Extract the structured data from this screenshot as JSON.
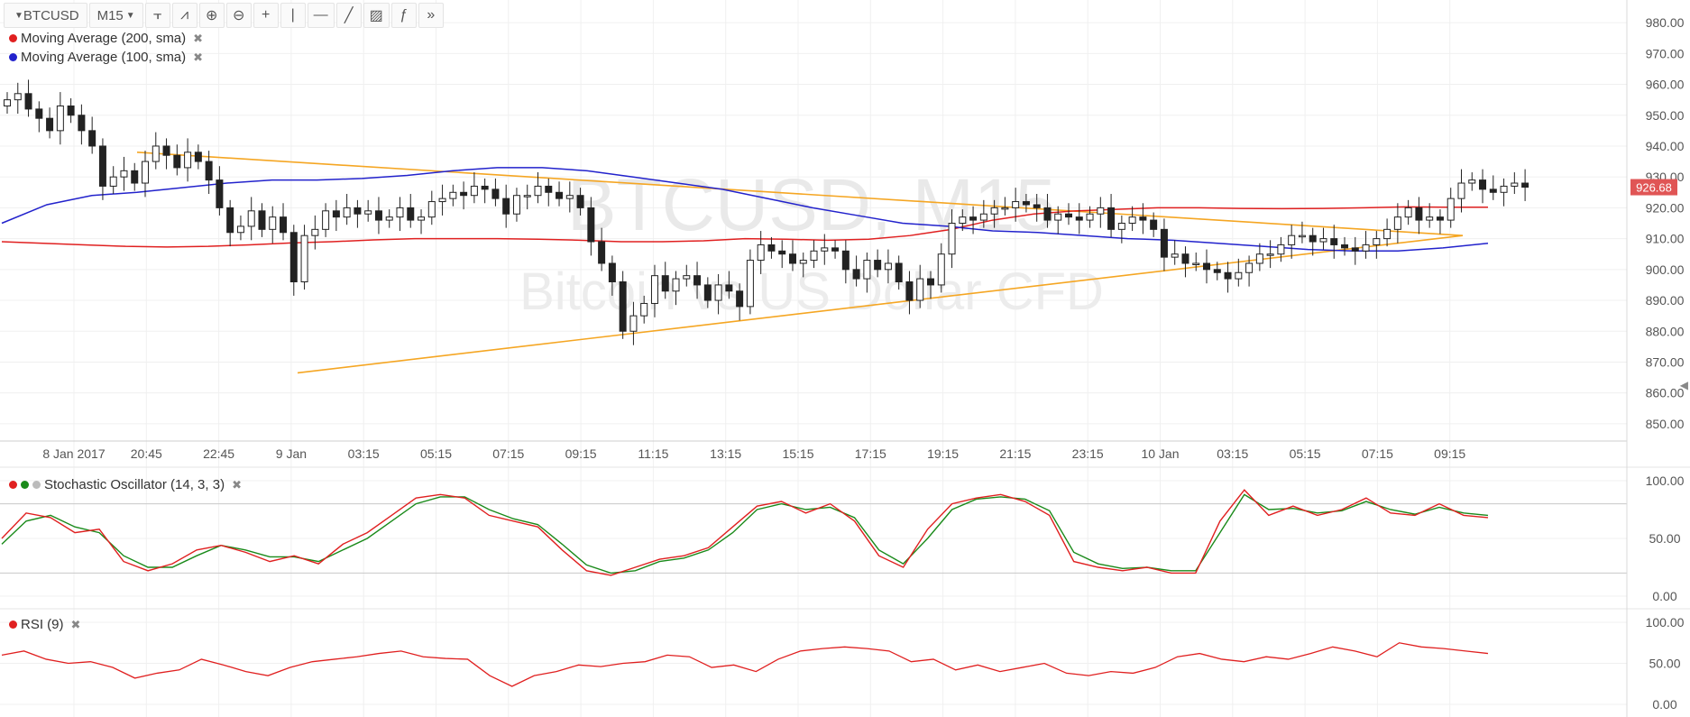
{
  "toolbar": {
    "symbol": "BTCUSD",
    "interval": "M15",
    "icons": [
      "bar-style-icon",
      "indicators-icon",
      "zoom-in-icon",
      "zoom-out-icon",
      "crosshair-icon",
      "vertical-line-icon",
      "horizontal-line-icon",
      "trend-line-icon",
      "fibonacci-icon",
      "function-icon",
      "more-icon"
    ]
  },
  "legends": {
    "ma200": "Moving Average (200, sma)",
    "ma100": "Moving Average (100, sma)",
    "stoch": "Stochastic Oscillator (14, 3, 3)",
    "rsi": "RSI (9)"
  },
  "watermark": {
    "line1": "BTCUSD, M15",
    "line2": "Bitcoin vs US Dollar CFD"
  },
  "colors": {
    "ma200": "#e02020",
    "ma100": "#2222cc",
    "stoch_k": "#e02020",
    "stoch_d": "#1a8a1a",
    "rsi": "#e02020",
    "trendline": "#f5a623",
    "price_badge": "#e05555",
    "grid": "#f0f0f0"
  },
  "chart_data": [
    {
      "type": "candlestick",
      "title": "BTCUSD, M15",
      "ylim": [
        845,
        985
      ],
      "y_ticks": [
        "980.00",
        "970.00",
        "960.00",
        "950.00",
        "940.00",
        "930.00",
        "920.00",
        "910.00",
        "900.00",
        "890.00",
        "880.00",
        "870.00",
        "860.00",
        "850.00"
      ],
      "x_ticks": [
        "8 Jan 2017",
        "20:45",
        "22:45",
        "9 Jan",
        "03:15",
        "05:15",
        "07:15",
        "09:15",
        "11:15",
        "13:15",
        "15:15",
        "17:15",
        "19:15",
        "21:15",
        "23:15",
        "10 Jan",
        "03:15",
        "05:15",
        "07:15",
        "09:15"
      ],
      "current_price": "926.68",
      "close": [
        955,
        957,
        952,
        949,
        945,
        953,
        950,
        945,
        940,
        927,
        930,
        932,
        928,
        935,
        940,
        937,
        933,
        938,
        935,
        929,
        920,
        912,
        914,
        919,
        913,
        917,
        912,
        896,
        911,
        913,
        919,
        917,
        920,
        918,
        919,
        916,
        917,
        920,
        916,
        917,
        922,
        923,
        925,
        924,
        927,
        926,
        923,
        918,
        924,
        924,
        927,
        925,
        923,
        924,
        920,
        909,
        902,
        896,
        880,
        885,
        889,
        898,
        893,
        897,
        898,
        895,
        890,
        895,
        893,
        888,
        903,
        908,
        906,
        905,
        902,
        903,
        906,
        907,
        906,
        900,
        897,
        903,
        900,
        902,
        896,
        890,
        897,
        895,
        905,
        915,
        917,
        916,
        918,
        920,
        920,
        922,
        921,
        920,
        916,
        918,
        917,
        916,
        918,
        920,
        913,
        915,
        917,
        916,
        913,
        904,
        905,
        902,
        902,
        900,
        899,
        897,
        899,
        902,
        905,
        905,
        908,
        911,
        911,
        909,
        910,
        908,
        907,
        906,
        908,
        910,
        913,
        917,
        920,
        916,
        917,
        916,
        923,
        928,
        929,
        926,
        925,
        927,
        928,
        926.68
      ],
      "series": [
        {
          "name": "Moving Average (200, sma)",
          "values": [
            909,
            908.5,
            908,
            907.5,
            907.3,
            907.5,
            908,
            908.6,
            909,
            909.6,
            910,
            910,
            910,
            909.8,
            909.5,
            909,
            909,
            909.3,
            910,
            909.8,
            909.5,
            909.8,
            911,
            913,
            916,
            918,
            919,
            919.5,
            920,
            920,
            919.8,
            919.7,
            919.8,
            920,
            920.3,
            920.2,
            920.2
          ]
        },
        {
          "name": "Moving Average (100, sma)",
          "values": [
            915,
            921,
            924,
            925,
            926.5,
            928,
            929,
            929,
            929.5,
            930.5,
            932,
            933,
            933,
            932,
            930,
            928,
            926,
            923,
            920,
            917.5,
            915,
            914,
            912.5,
            912,
            911,
            910,
            909.5,
            908.5,
            907.5,
            906.5,
            906,
            906,
            907,
            908.5
          ]
        },
        {
          "name": "Stochastic Oscillator (14, 3, 3)",
          "k": [
            50,
            72,
            68,
            55,
            58,
            30,
            22,
            28,
            40,
            44,
            38,
            30,
            35,
            28,
            45,
            55,
            70,
            85,
            88,
            85,
            70,
            65,
            60,
            40,
            22,
            18,
            25,
            32,
            35,
            42,
            60,
            78,
            82,
            72,
            80,
            65,
            35,
            25,
            58,
            80,
            85,
            88,
            82,
            70,
            30,
            25,
            22,
            25,
            20,
            20,
            65,
            92,
            70,
            78,
            70,
            75,
            85,
            72,
            70,
            80,
            70,
            68
          ],
          "d": [
            45,
            65,
            70,
            60,
            55,
            35,
            25,
            25,
            35,
            44,
            40,
            34,
            34,
            30,
            40,
            50,
            65,
            80,
            86,
            86,
            75,
            67,
            62,
            45,
            27,
            20,
            22,
            30,
            33,
            40,
            55,
            75,
            80,
            75,
            77,
            68,
            40,
            28,
            50,
            75,
            84,
            86,
            84,
            74,
            38,
            28,
            24,
            25,
            22,
            22,
            55,
            88,
            75,
            76,
            72,
            74,
            82,
            75,
            71,
            77,
            72,
            70
          ]
        },
        {
          "name": "RSI (9)",
          "values": [
            60,
            65,
            55,
            50,
            52,
            45,
            32,
            38,
            42,
            55,
            48,
            40,
            35,
            45,
            52,
            55,
            58,
            62,
            65,
            58,
            56,
            55,
            35,
            22,
            35,
            40,
            48,
            46,
            50,
            52,
            60,
            58,
            45,
            48,
            40,
            55,
            65,
            68,
            70,
            68,
            65,
            52,
            55,
            42,
            48,
            40,
            45,
            50,
            38,
            35,
            40,
            38,
            45,
            58,
            62,
            55,
            52,
            58,
            55,
            62,
            70,
            65,
            58,
            75,
            70,
            68,
            65,
            62
          ]
        }
      ],
      "panels": {
        "stoch_ylim": [
          0,
          100
        ],
        "stoch_ticks": [
          "100.00",
          "50.00",
          "0.00"
        ],
        "rsi_ylim": [
          0,
          100
        ],
        "rsi_ticks": [
          "100.00",
          "50.00",
          "0.00"
        ]
      }
    }
  ]
}
